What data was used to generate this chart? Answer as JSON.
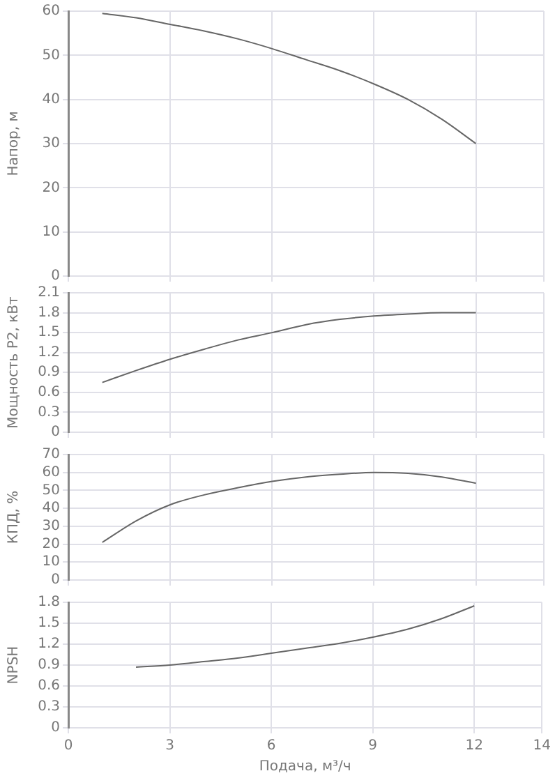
{
  "chart_data": [
    {
      "type": "line",
      "ylabel": "Напор, м",
      "xlim": [
        0,
        14
      ],
      "xticks": [
        0,
        3,
        6,
        9,
        12,
        14
      ],
      "ylim": [
        0,
        60
      ],
      "yticks": [
        0,
        10,
        20,
        30,
        40,
        50,
        60
      ],
      "tick_labels": "y",
      "grid": true,
      "legend": false,
      "marker": "none",
      "line_style": "solid",
      "series": [
        {
          "color": "#666666",
          "x": [
            1,
            2,
            3,
            4,
            5,
            6,
            7,
            8,
            9,
            10,
            11,
            12
          ],
          "values": [
            59.5,
            58.5,
            57,
            55.5,
            53.7,
            51.5,
            49,
            46.5,
            43.5,
            40,
            35.5,
            30
          ]
        }
      ]
    },
    {
      "type": "line",
      "ylabel": "Мощность P2, кВт",
      "xlim": [
        0,
        14
      ],
      "xticks": [
        0,
        3,
        6,
        9,
        12,
        14
      ],
      "ylim": [
        0,
        2.1
      ],
      "yticks": [
        0,
        0.3,
        0.6,
        0.9,
        1.2,
        1.5,
        1.8,
        2.1
      ],
      "tick_labels": "y",
      "grid": true,
      "legend": false,
      "marker": "none",
      "line_style": "solid",
      "series": [
        {
          "color": "#666666",
          "x": [
            1,
            2,
            3,
            4,
            5,
            6,
            7,
            8,
            9,
            10,
            11,
            12
          ],
          "values": [
            0.75,
            0.93,
            1.1,
            1.25,
            1.39,
            1.5,
            1.62,
            1.7,
            1.75,
            1.78,
            1.8,
            1.8
          ]
        }
      ]
    },
    {
      "type": "line",
      "ylabel": "КПД, %",
      "xlim": [
        0,
        14
      ],
      "xticks": [
        0,
        3,
        6,
        9,
        12,
        14
      ],
      "ylim": [
        0,
        70
      ],
      "yticks": [
        0,
        10,
        20,
        30,
        40,
        50,
        60,
        70
      ],
      "tick_labels": "y",
      "grid": true,
      "legend": false,
      "marker": "none",
      "line_style": "solid",
      "series": [
        {
          "color": "#666666",
          "x": [
            1,
            2,
            3,
            4,
            5,
            6,
            7,
            8,
            9,
            10,
            11,
            12
          ],
          "values": [
            21,
            33,
            42,
            47.5,
            51.5,
            55,
            57.5,
            59,
            60,
            59.5,
            57.5,
            54
          ]
        }
      ]
    },
    {
      "type": "line",
      "xlabel": "Подача, м³/ч",
      "ylabel": "NPSH",
      "xlim": [
        0,
        14
      ],
      "xticks": [
        0,
        3,
        6,
        9,
        12,
        14
      ],
      "ylim": [
        0,
        1.8
      ],
      "yticks": [
        0,
        0.3,
        0.6,
        0.9,
        1.2,
        1.5,
        1.8
      ],
      "grid": true,
      "legend": false,
      "marker": "none",
      "line_style": "solid",
      "series": [
        {
          "color": "#666666",
          "x": [
            2,
            3,
            4,
            5,
            6,
            7,
            8,
            9,
            10,
            11,
            12
          ],
          "values": [
            0.87,
            0.9,
            0.95,
            1.0,
            1.07,
            1.14,
            1.21,
            1.3,
            1.41,
            1.56,
            1.75
          ]
        }
      ]
    }
  ]
}
